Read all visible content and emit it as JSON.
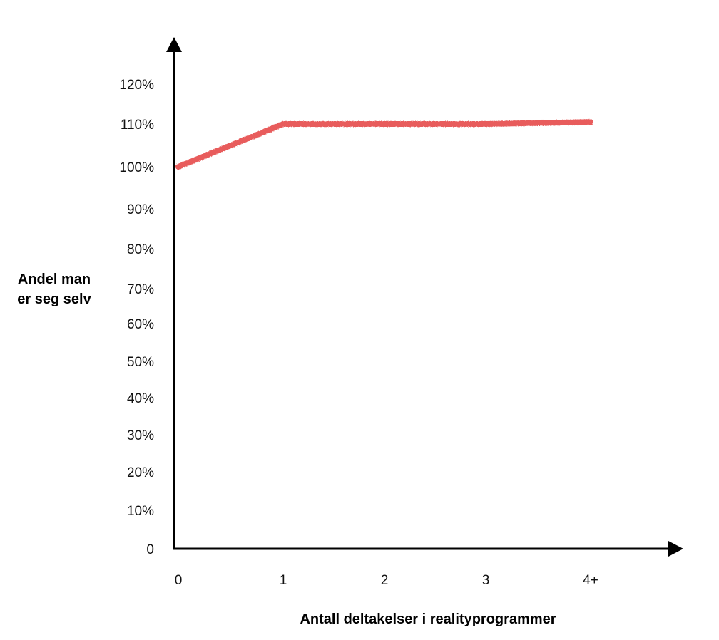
{
  "chart_data": {
    "type": "line",
    "title": "",
    "xlabel": "Antall deltakelser i realityprogrammer",
    "ylabel_lines": [
      "Andel man",
      "er seg selv"
    ],
    "categories": [
      "0",
      "1",
      "2",
      "3",
      "4+"
    ],
    "y_ticks": [
      "0",
      "10%",
      "20%",
      "30%",
      "40%",
      "50%",
      "60%",
      "70%",
      "80%",
      "90%",
      "100%",
      "110%",
      "120%"
    ],
    "ylim": [
      0,
      120
    ],
    "y_unit": "%",
    "grid": false,
    "legend": "none",
    "series": [
      {
        "color": "#e85c5c",
        "values": [
          100,
          110,
          110,
          110,
          110.5
        ]
      }
    ]
  }
}
